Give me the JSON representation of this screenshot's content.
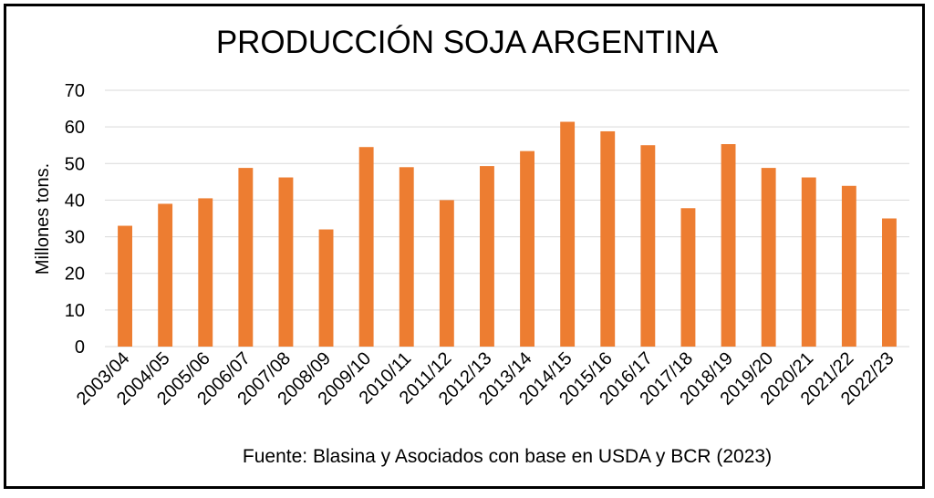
{
  "chart_data": {
    "type": "bar",
    "title": "PRODUCCIÓN SOJA ARGENTINA",
    "ylabel": "Millones tons.",
    "xlabel": "",
    "source": "Fuente: Blasina y Asociados con base en USDA y BCR (2023)",
    "categories": [
      "2003/04",
      "2004/05",
      "2005/06",
      "2006/07",
      "2007/08",
      "2008/09",
      "2009/10",
      "2010/11",
      "2011/12",
      "2012/13",
      "2013/14",
      "2014/15",
      "2015/16",
      "2016/17",
      "2017/18",
      "2018/19",
      "2019/20",
      "2020/21",
      "2021/22",
      "2022/23"
    ],
    "values": [
      33,
      39,
      40.5,
      48.8,
      46.2,
      32,
      54.5,
      49,
      40,
      49.3,
      53.4,
      61.4,
      58.8,
      55,
      37.8,
      55.3,
      48.8,
      46.2,
      43.9,
      35
    ],
    "ylim": [
      0,
      70
    ],
    "yticks": [
      0,
      10,
      20,
      30,
      40,
      50,
      60,
      70
    ],
    "grid": true,
    "bar_color": "#ED7D31",
    "grid_color": "#D9D9D9"
  }
}
